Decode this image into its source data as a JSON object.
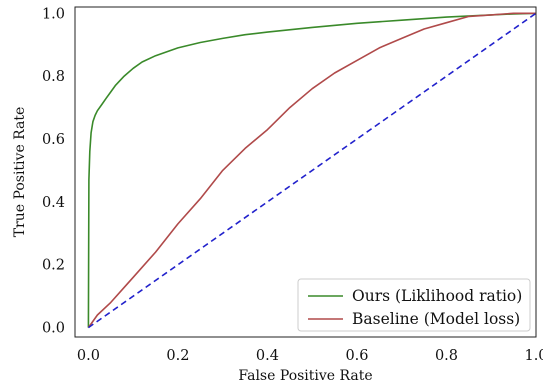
{
  "chart_data": {
    "type": "line",
    "title": "",
    "xlabel": "False Positive Rate",
    "ylabel": "True Positive Rate",
    "xlim": [
      -0.03,
      1.0
    ],
    "ylim": [
      -0.03,
      1.02
    ],
    "x_ticks": [
      "0.0",
      "0.2",
      "0.4",
      "0.6",
      "0.8",
      "1.0"
    ],
    "y_ticks": [
      "0.0",
      "0.2",
      "0.4",
      "0.6",
      "0.8",
      "1.0"
    ],
    "grid": false,
    "legend_position": "bottom-right",
    "series": [
      {
        "name": "Ours (Liklihood ratio)",
        "color": "#3a8a2a",
        "style": "solid",
        "x": [
          0.0,
          0.001,
          0.003,
          0.006,
          0.01,
          0.015,
          0.02,
          0.03,
          0.04,
          0.05,
          0.06,
          0.08,
          0.1,
          0.12,
          0.15,
          0.2,
          0.25,
          0.3,
          0.35,
          0.4,
          0.5,
          0.6,
          0.7,
          0.8,
          0.9,
          0.95,
          1.0
        ],
        "y": [
          0.0,
          0.47,
          0.56,
          0.62,
          0.655,
          0.675,
          0.69,
          0.71,
          0.73,
          0.75,
          0.77,
          0.8,
          0.825,
          0.845,
          0.865,
          0.89,
          0.907,
          0.92,
          0.932,
          0.94,
          0.955,
          0.968,
          0.978,
          0.988,
          0.995,
          0.998,
          1.0
        ]
      },
      {
        "name": "Baseline (Model loss)",
        "color": "#b04a4a",
        "style": "solid",
        "x": [
          0.0,
          0.02,
          0.05,
          0.1,
          0.15,
          0.2,
          0.25,
          0.3,
          0.35,
          0.4,
          0.45,
          0.5,
          0.55,
          0.6,
          0.65,
          0.7,
          0.75,
          0.8,
          0.85,
          0.9,
          0.95,
          1.0
        ],
        "y": [
          0.0,
          0.04,
          0.08,
          0.16,
          0.24,
          0.33,
          0.41,
          0.5,
          0.57,
          0.63,
          0.7,
          0.76,
          0.81,
          0.85,
          0.89,
          0.92,
          0.95,
          0.97,
          0.99,
          0.995,
          1.0,
          1.0
        ]
      },
      {
        "name": "",
        "color": "#2222cc",
        "style": "dashed",
        "x": [
          0.0,
          1.0
        ],
        "y": [
          0.0,
          1.0
        ]
      }
    ]
  }
}
